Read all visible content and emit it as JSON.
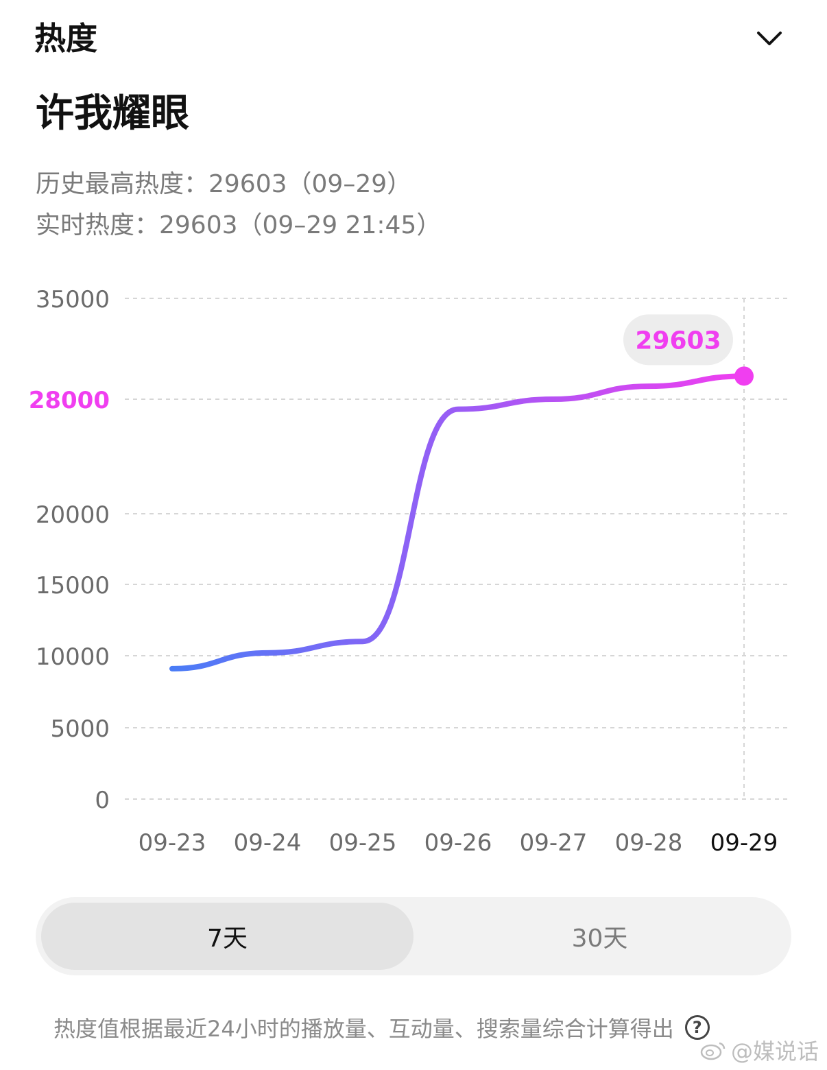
{
  "header": {
    "title": "热度",
    "collapse_icon": "chevron-down-icon"
  },
  "topic": {
    "title": "许我耀眼"
  },
  "stats": {
    "history_high": "历史最高热度：29603（09–29）",
    "realtime": "实时热度：29603（09–29 21:45）"
  },
  "chart_data": {
    "type": "line",
    "x": [
      "09-23",
      "09-24",
      "09-25",
      "09-26",
      "09-27",
      "09-28",
      "09-29"
    ],
    "series": [
      {
        "values": [
          9100,
          10200,
          11000,
          27300,
          28000,
          28900,
          29603
        ]
      }
    ],
    "y_ticks": [
      "35000",
      "28000",
      "20000",
      "15000",
      "10000",
      "5000",
      "0"
    ],
    "y_tick_values": [
      35000,
      28000,
      20000,
      15000,
      10000,
      5000,
      0
    ],
    "highlight_tick": "28000",
    "ylim": [
      0,
      35000
    ],
    "tooltip_value": "29603",
    "highlight_x": "09-29",
    "grid": true,
    "colors": {
      "line_start": "#4a7cf6",
      "line_mid": "#9a5cf5",
      "line_end": "#f03ef0",
      "highlight": "#f03ef0",
      "tooltip_bg": "#ededed",
      "grid": "#d6d6d6",
      "tick_label": "#6b6b6b",
      "active_x_label": "#111111"
    }
  },
  "range_toggle": {
    "option_7": "7天",
    "option_30": "30天",
    "selected": "7天"
  },
  "footnote": {
    "text": "热度值根据最近24小时的播放量、互动量、搜索量综合计算得出",
    "help_icon": "question-circle-icon"
  },
  "watermark": {
    "text": "@媒说话",
    "icon": "weibo-icon"
  }
}
